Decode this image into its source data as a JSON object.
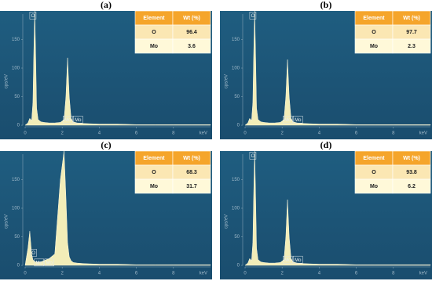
{
  "chart_data": [
    {
      "type": "area",
      "panel_label": "(a)",
      "xlabel": "keV",
      "ylabel": "cps/eV",
      "x": [
        0,
        0.15,
        0.25,
        0.35,
        0.42,
        0.47,
        0.52,
        0.57,
        0.62,
        0.7,
        0.85,
        1.0,
        1.3,
        1.6,
        1.9,
        2.1,
        2.2,
        2.29,
        2.38,
        2.48,
        2.6,
        2.8,
        3.2,
        4,
        5,
        6,
        7,
        8,
        9,
        10
      ],
      "values": [
        0,
        4,
        12,
        8,
        40,
        130,
        200,
        120,
        30,
        10,
        6,
        5,
        4,
        4,
        5,
        10,
        50,
        118,
        50,
        12,
        6,
        4,
        3,
        2,
        2,
        1,
        1,
        1,
        1,
        1
      ],
      "color": "#f2edb8",
      "xlim": [
        0,
        10
      ],
      "ylim": [
        0,
        200
      ],
      "xticks": [
        0,
        2,
        4,
        6,
        8
      ],
      "yticks": [
        0,
        50,
        100,
        150
      ],
      "annotations": [
        {
          "text": "O",
          "x": 0.42,
          "y": 192
        },
        {
          "text": "Mo",
          "x": 2.3,
          "y": 10
        },
        {
          "text": "Mo",
          "x": 2.85,
          "y": 10
        }
      ],
      "table": {
        "columns": [
          "Element",
          "Wt (%)"
        ],
        "rows": [
          [
            "O",
            96.4
          ],
          [
            "Mo",
            3.6
          ]
        ]
      }
    },
    {
      "type": "area",
      "panel_label": "(b)",
      "xlabel": "keV",
      "ylabel": "cps/eV",
      "x": [
        0,
        0.15,
        0.25,
        0.35,
        0.42,
        0.47,
        0.52,
        0.57,
        0.62,
        0.7,
        0.85,
        1.0,
        1.3,
        1.6,
        1.9,
        2.1,
        2.2,
        2.29,
        2.38,
        2.48,
        2.6,
        2.8,
        3.2,
        4,
        5,
        6,
        7,
        8,
        9,
        10
      ],
      "values": [
        0,
        4,
        12,
        8,
        40,
        130,
        200,
        120,
        30,
        10,
        6,
        5,
        4,
        4,
        5,
        10,
        50,
        115,
        50,
        12,
        6,
        4,
        3,
        2,
        2,
        1,
        1,
        1,
        1,
        1
      ],
      "color": "#f2edb8",
      "xlim": [
        0,
        10
      ],
      "ylim": [
        0,
        200
      ],
      "xticks": [
        0,
        2,
        4,
        6,
        8
      ],
      "yticks": [
        0,
        50,
        100,
        150
      ],
      "annotations": [
        {
          "text": "O",
          "x": 0.42,
          "y": 192
        },
        {
          "text": "Mo",
          "x": 2.3,
          "y": 10
        },
        {
          "text": "Mo",
          "x": 2.85,
          "y": 10
        }
      ],
      "table": {
        "columns": [
          "Element",
          "Wt (%)"
        ],
        "rows": [
          [
            "O",
            97.7
          ],
          [
            "Mo",
            2.3
          ]
        ]
      }
    },
    {
      "type": "area",
      "panel_label": "(c)",
      "xlabel": "keV",
      "ylabel": "cps/eV",
      "x": [
        0,
        0.15,
        0.25,
        0.35,
        0.42,
        0.47,
        0.52,
        0.57,
        0.62,
        0.7,
        0.85,
        1.0,
        1.3,
        1.6,
        1.9,
        2.1,
        2.2,
        2.29,
        2.38,
        2.48,
        2.6,
        2.8,
        3.2,
        4,
        5,
        6,
        7,
        8,
        9,
        10
      ],
      "values": [
        0,
        30,
        60,
        20,
        10,
        8,
        7,
        6,
        6,
        6,
        6,
        8,
        12,
        20,
        150,
        200,
        120,
        40,
        15,
        8,
        5,
        4,
        3,
        2,
        2,
        1,
        1,
        1,
        1,
        1
      ],
      "color": "#f2edb8",
      "xlim": [
        0,
        10
      ],
      "ylim": [
        0,
        200
      ],
      "xticks": [
        0,
        2,
        4,
        6,
        8
      ],
      "yticks": [
        0,
        50,
        100,
        150
      ],
      "annotations": [
        {
          "text": "O",
          "x": 0.45,
          "y": 22
        },
        {
          "text": "Mo",
          "x": 0.75,
          "y": 5
        },
        {
          "text": "Mo",
          "x": 1.3,
          "y": 5
        }
      ],
      "table": {
        "columns": [
          "Element",
          "Wt (%)"
        ],
        "rows": [
          [
            "O",
            68.3
          ],
          [
            "Mo",
            31.7
          ]
        ]
      }
    },
    {
      "type": "area",
      "panel_label": "(d)",
      "xlabel": "keV",
      "ylabel": "cps/eV",
      "x": [
        0,
        0.15,
        0.25,
        0.35,
        0.42,
        0.47,
        0.52,
        0.57,
        0.62,
        0.7,
        0.85,
        1.0,
        1.3,
        1.6,
        1.9,
        2.1,
        2.2,
        2.29,
        2.38,
        2.48,
        2.6,
        2.8,
        3.2,
        4,
        5,
        6,
        7,
        8,
        9,
        10
      ],
      "values": [
        0,
        4,
        12,
        8,
        40,
        130,
        200,
        120,
        30,
        10,
        6,
        5,
        4,
        4,
        5,
        10,
        50,
        115,
        50,
        12,
        6,
        4,
        3,
        2,
        2,
        1,
        1,
        1,
        1,
        1
      ],
      "color": "#f2edb8",
      "xlim": [
        0,
        10
      ],
      "ylim": [
        0,
        200
      ],
      "xticks": [
        0,
        2,
        4,
        6,
        8
      ],
      "yticks": [
        0,
        50,
        100,
        150
      ],
      "annotations": [
        {
          "text": "O",
          "x": 0.42,
          "y": 192
        },
        {
          "text": "Mo",
          "x": 2.3,
          "y": 10
        },
        {
          "text": "Mo",
          "x": 2.85,
          "y": 10
        }
      ],
      "table": {
        "columns": [
          "Element",
          "Wt (%)"
        ],
        "rows": [
          [
            "O",
            93.8
          ],
          [
            "Mo",
            6.2
          ]
        ]
      }
    }
  ]
}
